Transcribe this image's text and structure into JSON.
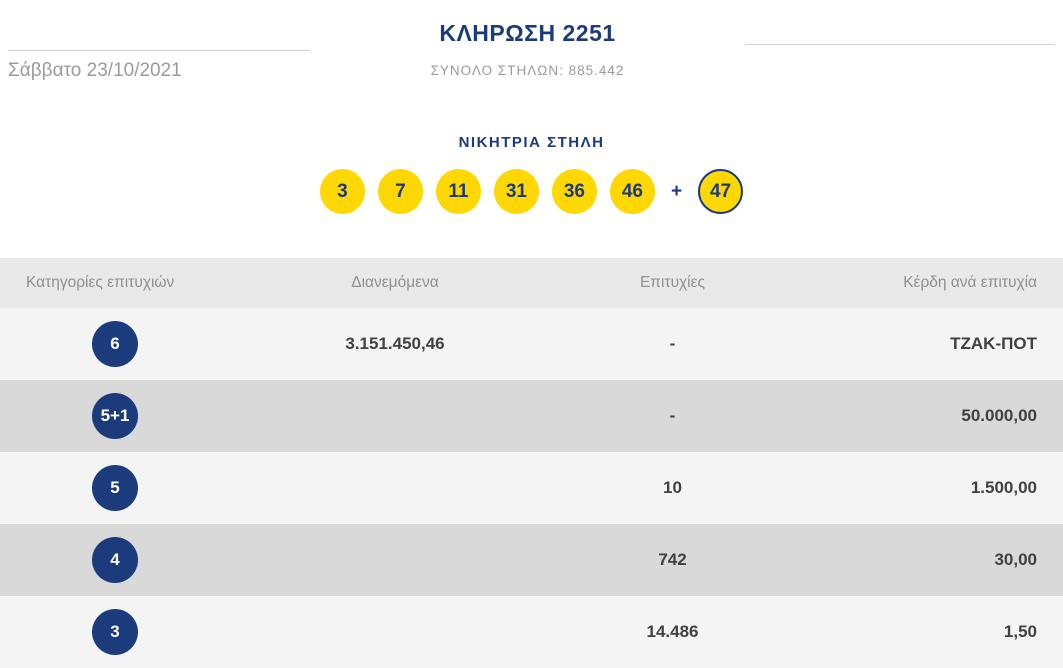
{
  "header": {
    "draw_title": "ΚΛΗΡΩΣΗ 2251",
    "total_columns": "ΣΥΝΟΛΟ ΣΤΗΛΩΝ: 885.442",
    "date": "Σάββατο 23/10/2021"
  },
  "winning": {
    "title": "ΝΙΚΗΤΡΙΑ ΣΤΗΛΗ",
    "numbers": [
      "3",
      "7",
      "11",
      "31",
      "36",
      "46"
    ],
    "plus_sign": "+",
    "bonus_number": "47"
  },
  "table": {
    "headers": [
      "Κατηγορίες επιτυχιών",
      "Διανεμόμενα",
      "Επιτυχίες",
      "Κέρδη ανά επιτυχία"
    ],
    "rows": [
      {
        "category": "6",
        "distributed": "3.151.450,46",
        "winners": "-",
        "prize": "ΤΖΑΚ-ΠΟΤ"
      },
      {
        "category": "5+1",
        "distributed": "",
        "winners": "-",
        "prize": "50.000,00"
      },
      {
        "category": "5",
        "distributed": "",
        "winners": "10",
        "prize": "1.500,00"
      },
      {
        "category": "4",
        "distributed": "",
        "winners": "742",
        "prize": "30,00"
      },
      {
        "category": "3",
        "distributed": "",
        "winners": "14.486",
        "prize": "1,50"
      }
    ]
  },
  "colors": {
    "navy": "#1b3b7d",
    "yellow": "#ffd703",
    "header-gray": "#e9e9e9",
    "row-light": "#f4f4f4",
    "row-dark": "#d9d9d9",
    "text-gray": "#9b9b9b",
    "text-dark": "#404040"
  }
}
